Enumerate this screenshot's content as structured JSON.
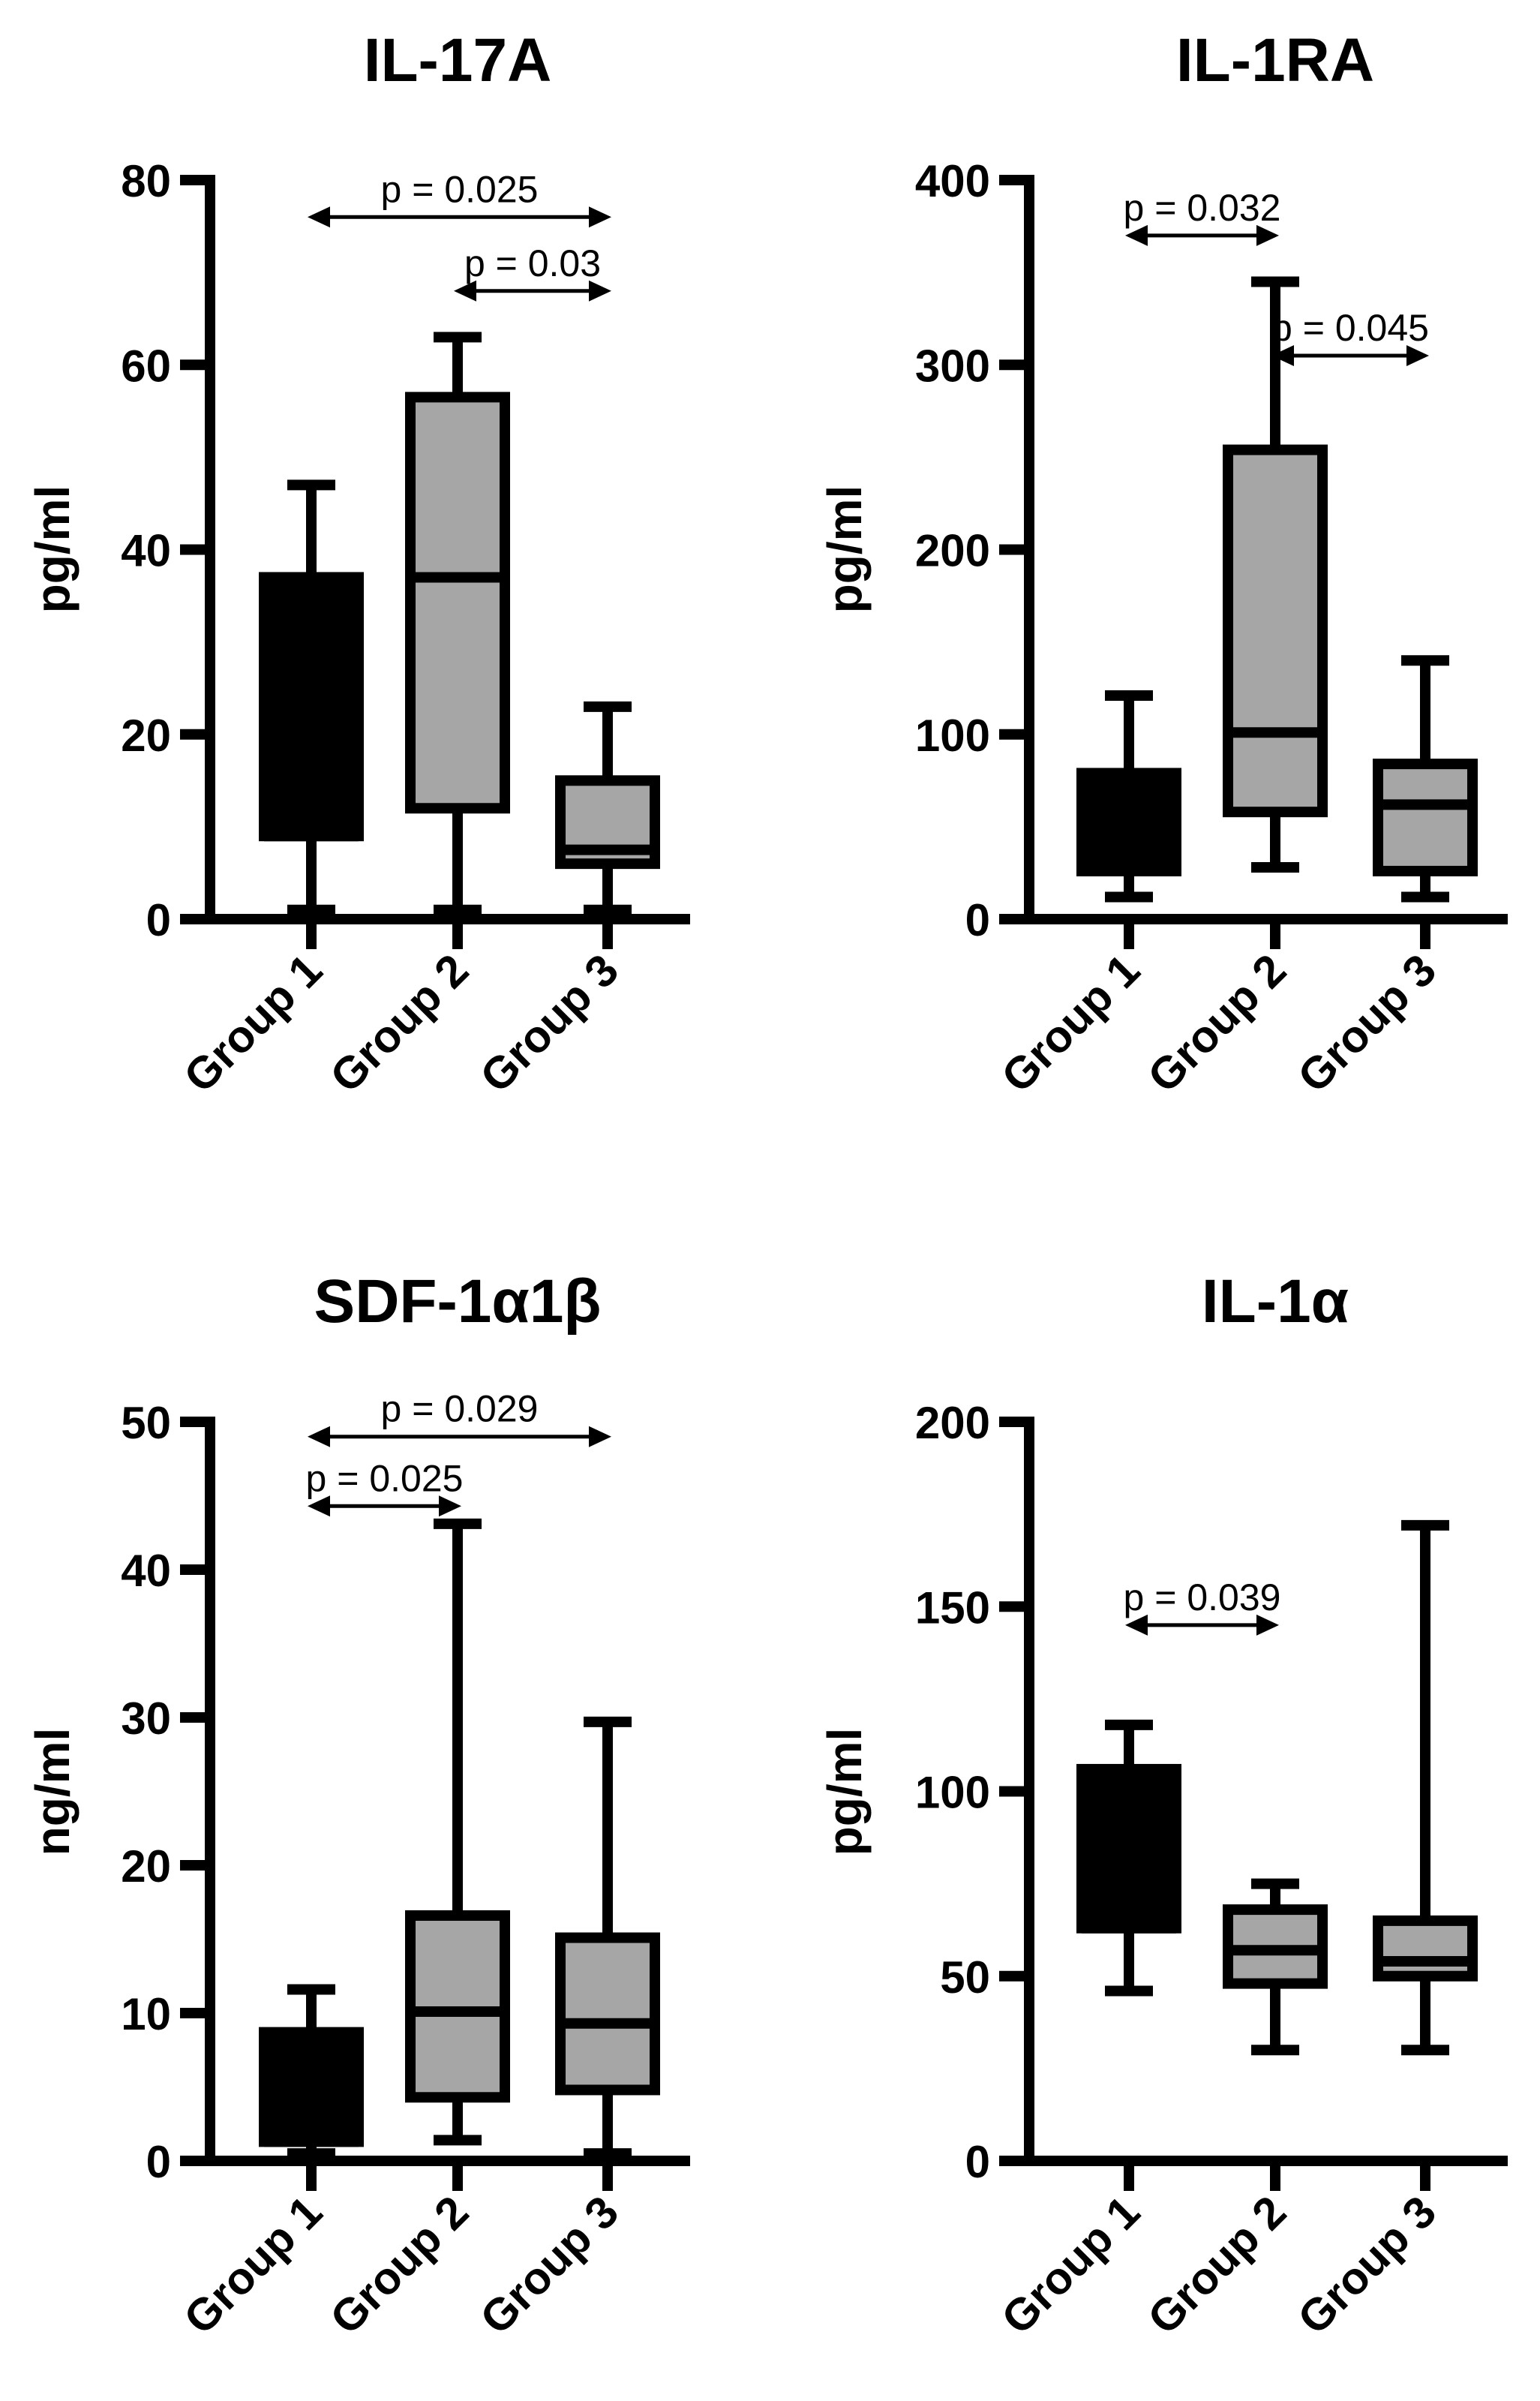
{
  "colors": {
    "ink": "#000000",
    "box_group1": "#000000",
    "box_other": "#a6a6a6"
  },
  "chart_data": [
    {
      "type": "boxplot",
      "title": "IL-17A",
      "ylabel": "pg/ml",
      "ylim": [
        0,
        80
      ],
      "yticks": [
        0,
        20,
        40,
        60,
        80
      ],
      "categories": [
        "Group 1",
        "Group 2",
        "Group 3"
      ],
      "boxes": [
        {
          "category": "Group 1",
          "min": 1,
          "q1": 9,
          "median": 9,
          "q3": 37,
          "max": 47
        },
        {
          "category": "Group 2",
          "min": 1,
          "q1": 12,
          "median": 37,
          "q3": 56.5,
          "max": 63
        },
        {
          "category": "Group 3",
          "min": 1,
          "q1": 6,
          "median": 7.5,
          "q3": 15,
          "max": 23
        }
      ],
      "comparisons": [
        {
          "label": "p = 0.025",
          "from": 0,
          "to": 2,
          "y": 76
        },
        {
          "label": "p = 0.03",
          "from": 1,
          "to": 2,
          "y": 68
        }
      ]
    },
    {
      "type": "boxplot",
      "title": "IL-1RA",
      "ylabel": "pg/ml",
      "ylim": [
        0,
        400
      ],
      "yticks": [
        0,
        100,
        200,
        300,
        400
      ],
      "categories": [
        "Group 1",
        "Group 2",
        "Group 3"
      ],
      "boxes": [
        {
          "category": "Group 1",
          "min": 12,
          "q1": 26,
          "median": 26,
          "q3": 79,
          "max": 121
        },
        {
          "category": "Group 2",
          "min": 28,
          "q1": 58,
          "median": 101,
          "q3": 254,
          "max": 345
        },
        {
          "category": "Group 3",
          "min": 12,
          "q1": 26,
          "median": 62,
          "q3": 84,
          "max": 140
        }
      ],
      "comparisons": [
        {
          "label": "p = 0.032",
          "from": 0,
          "to": 1,
          "y": 370
        },
        {
          "label": "p = 0.045",
          "from": 1,
          "to": 2,
          "y": 305
        }
      ]
    },
    {
      "type": "boxplot",
      "title": "SDF-1α1β",
      "ylabel": "ng/ml",
      "ylim": [
        0,
        50
      ],
      "yticks": [
        0,
        10,
        20,
        30,
        40,
        50
      ],
      "categories": [
        "Group 1",
        "Group 2",
        "Group 3"
      ],
      "boxes": [
        {
          "category": "Group 1",
          "min": 0.5,
          "q1": 1.3,
          "median": 1.3,
          "q3": 8.7,
          "max": 11.6
        },
        {
          "category": "Group 2",
          "min": 1.4,
          "q1": 4.3,
          "median": 10.1,
          "q3": 16.6,
          "max": 43.1
        },
        {
          "category": "Group 3",
          "min": 0.5,
          "q1": 4.8,
          "median": 9.3,
          "q3": 15.1,
          "max": 29.7
        }
      ],
      "comparisons": [
        {
          "label": "p = 0.029",
          "from": 0,
          "to": 2,
          "y": 49
        },
        {
          "label": "p = 0.025",
          "from": 0,
          "to": 1,
          "y": 44.3
        }
      ]
    },
    {
      "type": "boxplot",
      "title": "IL-1α",
      "ylabel": "pg/ml",
      "ylim": [
        0,
        200
      ],
      "yticks": [
        0,
        50,
        100,
        150,
        200
      ],
      "categories": [
        "Group 1",
        "Group 2",
        "Group 3"
      ],
      "boxes": [
        {
          "category": "Group 1",
          "min": 46,
          "q1": 63,
          "median": 63,
          "q3": 106,
          "max": 118
        },
        {
          "category": "Group 2",
          "min": 30,
          "q1": 48,
          "median": 57,
          "q3": 68,
          "max": 75
        },
        {
          "category": "Group 3",
          "min": 30,
          "q1": 50,
          "median": 54,
          "q3": 65,
          "max": 172
        }
      ],
      "comparisons": [
        {
          "label": "p = 0.039",
          "from": 0,
          "to": 1,
          "y": 145
        }
      ]
    }
  ]
}
